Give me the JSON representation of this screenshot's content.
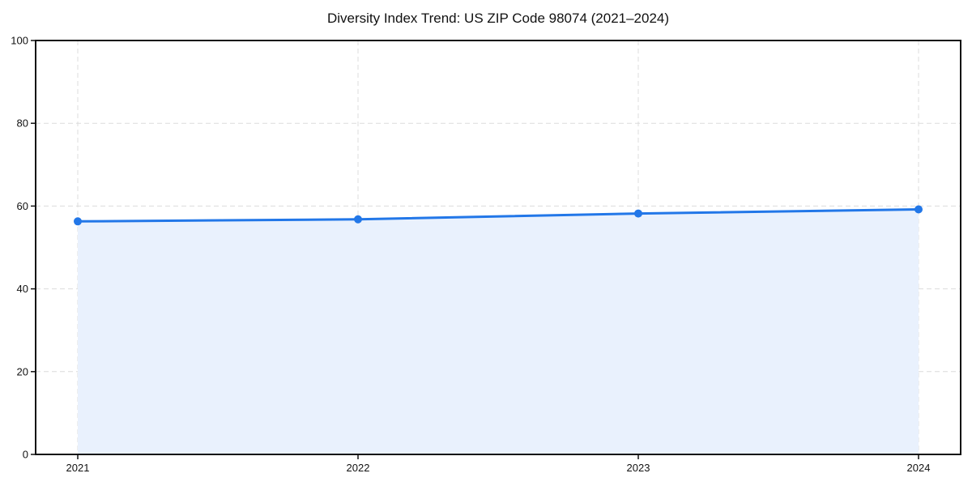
{
  "chart_data": {
    "type": "area",
    "title": "Diversity Index Trend: US ZIP Code 98074 (2021–2024)",
    "x": [
      2021,
      2022,
      2023,
      2024
    ],
    "xtick_labels": [
      "2021",
      "2022",
      "2023",
      "2024"
    ],
    "series": [
      {
        "name": "Diversity Index",
        "values": [
          56.3,
          56.8,
          58.2,
          59.2
        ]
      }
    ],
    "xlabel": "",
    "ylabel": "",
    "ylim": [
      0,
      100
    ],
    "yticks": [
      0,
      20,
      40,
      60,
      80,
      100
    ],
    "grid": true,
    "legend_position": "none",
    "marker": "circle",
    "colors": {
      "line": "#2277e8",
      "marker": "#2277e8",
      "area_fill": "#e9f1fd",
      "grid": "#dcdcdc",
      "axis": "#111111",
      "background": "#ffffff"
    }
  }
}
